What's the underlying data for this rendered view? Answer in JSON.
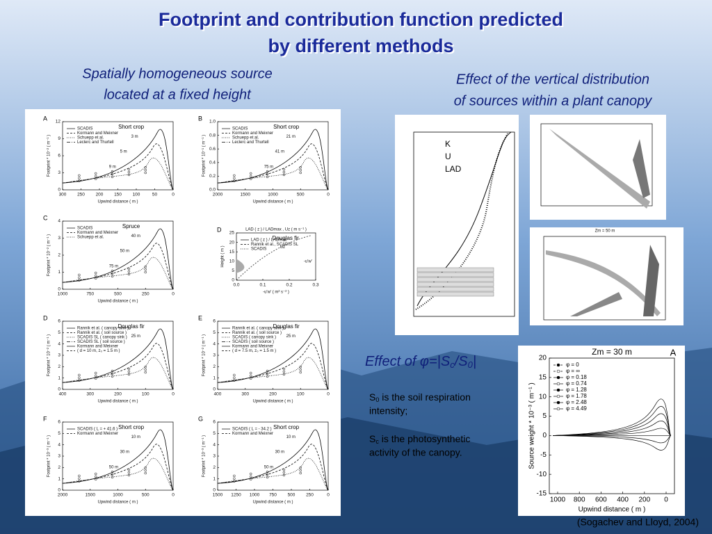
{
  "title": [
    "Footprint and contribution function predicted",
    "by different methods"
  ],
  "left_heading": [
    "Spatially homogeneous source",
    "located at a fixed height"
  ],
  "right_heading": [
    "Effect of the vertical distribution",
    "of sources within a plant canopy"
  ],
  "phi_heading": {
    "start": "Effect of φ=|S",
    "sub1": "c",
    "mid": "/S",
    "sub2": "0",
    "end": "|"
  },
  "notes": [
    {
      "symbol": "S",
      "sub": "0",
      "lines": [
        " is the soil respiration",
        "intensity;"
      ]
    },
    {
      "symbol": "S",
      "sub": "c",
      "lines": [
        " is the photosynthetic",
        "activity of the canopy."
      ]
    }
  ],
  "citation": "(Sogachev and Lloyd, 2004)",
  "panels": [
    {
      "letter": "A",
      "title": "Short crop",
      "y_label": "Footprint * 10⁻² ( m⁻¹ )",
      "x_label": "Upwind distance ( m )",
      "xticks": [
        "300",
        "250",
        "200",
        "150",
        "100",
        "50",
        "0"
      ],
      "yticks": [
        "0",
        "3",
        "6",
        "9",
        "12"
      ],
      "legend": [
        "SCADIS",
        "Kormann and Meixner",
        "Schuepp et al.",
        "Leclerc and Thurtell"
      ],
      "annotations": [
        "3 m",
        "5 m",
        "9 m"
      ]
    },
    {
      "letter": "B",
      "title": "Short crop",
      "y_label": "Footprint * 10⁻¹ ( m⁻¹ )",
      "x_label": "Upwind distance ( m )",
      "xticks": [
        "2000",
        "1500",
        "1000",
        "500",
        "0"
      ],
      "yticks": [
        "0.0",
        "0.2",
        "0.4",
        "0.6",
        "0.8",
        "1.0"
      ],
      "legend": [
        "SCADIS",
        "Kormann and Meixner",
        "Schuepp et al.",
        "Leclerc and Thurtell"
      ],
      "annotations": [
        "21 m",
        "41 m",
        "75 m"
      ]
    },
    {
      "letter": "C",
      "title": "Spruce",
      "y_label": "Footprint * 10⁻² ( m⁻¹ )",
      "x_label": "Upwind distance ( m )",
      "xticks": [
        "1000",
        "750",
        "500",
        "250",
        "0"
      ],
      "yticks": [
        "0",
        "1",
        "2",
        "3",
        "4"
      ],
      "legend": [
        "SCADIS",
        "Kormann and Meixner",
        "Schuepp et al."
      ],
      "annotations": [
        "40 m",
        "50 m",
        "75 m"
      ]
    },
    {
      "letter": "D",
      "title": "Douglas fir",
      "y_label": "Height ( m )",
      "x_label": "-u'w' ( m² s⁻² )",
      "top_label": "LAD ( z ) / LADmax , Uz ( m s⁻¹ )",
      "xticks": [
        "0.0",
        "0.1",
        "0.2",
        "0.3"
      ],
      "yticks": [
        "0",
        "5",
        "10",
        "15",
        "20",
        "25"
      ],
      "legend": [
        "LAD ( z ) / LADmax",
        "Rannik et al., SCADIS SL",
        "SCADIS"
      ],
      "annotations": [
        "Uz",
        "-u'w'"
      ]
    },
    {
      "letter": "D",
      "title": "Douglas fir",
      "y_label": "Footprint * 10⁻² ( m⁻¹ )",
      "x_label": "Upwind distance ( m )",
      "xticks": [
        "400",
        "300",
        "200",
        "100",
        "0"
      ],
      "yticks": [
        "0",
        "1",
        "2",
        "3",
        "4",
        "5",
        "6"
      ],
      "legend": [
        "Rannik et al. ( canopy sink )",
        "Rannik et al. ( soil source )",
        "SCADIS SL ( canopy sink )",
        "SCADIS SL ( soil source )",
        "Kormann and Meixner",
        "( d = 10 m, z₀ = 1.5 m )"
      ],
      "annotations": [
        "25 m"
      ]
    },
    {
      "letter": "E",
      "title": "Douglas fir",
      "y_label": "Footprint * 10⁻² ( m⁻¹ )",
      "x_label": "Upwind distance ( m )",
      "xticks": [
        "400",
        "300",
        "200",
        "100",
        "0"
      ],
      "yticks": [
        "0",
        "1",
        "2",
        "3",
        "4",
        "5",
        "6"
      ],
      "legend": [
        "Rannik et al. ( canopy sink )",
        "Rannik et al. ( soil source )",
        "SCADIS ( canopy sink )",
        "SCADIS ( soil source )",
        "Kormann and Meixner",
        "( d = 7.5 m, z₀ = 1.5 m )"
      ],
      "annotations": [
        "25 m"
      ]
    },
    {
      "letter": "F",
      "title": "Short crop",
      "y_label": "Footprint * 10⁻³ ( m⁻¹ )",
      "x_label": "Upwind distance ( m )",
      "xticks": [
        "2000",
        "1500",
        "1000",
        "500",
        "0"
      ],
      "yticks": [
        "0",
        "1",
        "2",
        "3",
        "4",
        "5",
        "6"
      ],
      "legend": [
        "SCADIS ( L = + 41.6 )",
        "Kormann and Meixner"
      ],
      "annotations": [
        "10 m",
        "30 m",
        "50 m"
      ]
    },
    {
      "letter": "G",
      "title": "Short crop",
      "y_label": "Footprint * 10⁻³ ( m⁻¹ )",
      "x_label": "Upwind distance ( m )",
      "xticks": [
        "1500",
        "1250",
        "1000",
        "750",
        "500",
        "250",
        "0"
      ],
      "yticks": [
        "0",
        "1",
        "2",
        "3",
        "4",
        "5",
        "6"
      ],
      "legend": [
        "SCADIS ( L = - 34.2 )",
        "Kormann and Meixner"
      ],
      "annotations": [
        "10 m",
        "30 m",
        "50 m"
      ]
    }
  ],
  "profile_chart": {
    "legend": [
      "K",
      "U",
      "LAD"
    ]
  },
  "middle_chart": {
    "title": "Zm = 50 m"
  },
  "source_chart": {
    "title": "Zm = 30 m",
    "letter": "A",
    "y_label": "Source weight * 10⁻³ ( m⁻¹ )",
    "x_label": "Upwind distance ( m )",
    "xticks": [
      "1000",
      "800",
      "600",
      "400",
      "200",
      "0"
    ],
    "yticks": [
      "20",
      "15",
      "10",
      "5",
      "0",
      "-5",
      "-10",
      "-15"
    ],
    "legend": [
      "φ = 0",
      "φ = ∞",
      "φ = 0.18",
      "φ = 0.74",
      "φ = 1.28",
      "φ = 1.78",
      "φ = 2.48",
      "φ = 4.49"
    ]
  }
}
